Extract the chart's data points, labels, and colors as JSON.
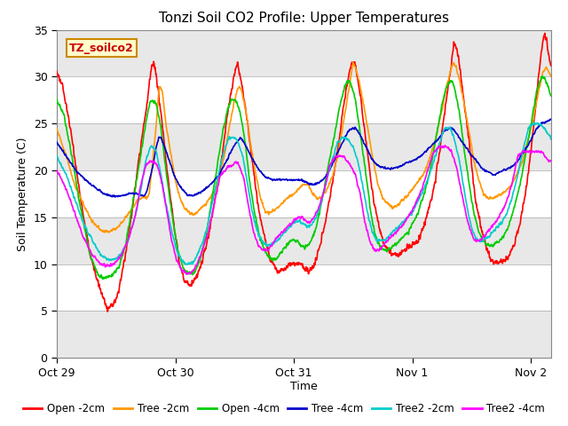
{
  "title": "Tonzi Soil CO2 Profile: Upper Temperatures",
  "xlabel": "Time",
  "ylabel": "Soil Temperature (C)",
  "ylim": [
    0,
    35
  ],
  "yticks": [
    0,
    5,
    10,
    15,
    20,
    25,
    30,
    35
  ],
  "xlim": [
    0,
    4.17
  ],
  "xtick_positions": [
    0,
    1,
    2,
    3,
    4
  ],
  "xtick_labels": [
    "Oct 29",
    "Oct 30",
    "Oct 31",
    "Nov 1",
    "Nov 2"
  ],
  "fig_bg_color": "#ffffff",
  "plot_bg_color": "#ffffff",
  "band_color_light": "#ffffff",
  "band_color_dark": "#e8e8e8",
  "grid_color": "#cccccc",
  "annotation_text": "TZ_soilco2",
  "annotation_bg": "#ffffcc",
  "annotation_border": "#cc8800",
  "series": [
    {
      "name": "Open -2cm",
      "color": "#ff0000"
    },
    {
      "name": "Tree -2cm",
      "color": "#ff9900"
    },
    {
      "name": "Open -4cm",
      "color": "#00cc00"
    },
    {
      "name": "Tree -4cm",
      "color": "#0000cc"
    },
    {
      "name": "Tree2 -2cm",
      "color": "#00cccc"
    },
    {
      "name": "Tree2 -4cm",
      "color": "#ff00ff"
    }
  ]
}
